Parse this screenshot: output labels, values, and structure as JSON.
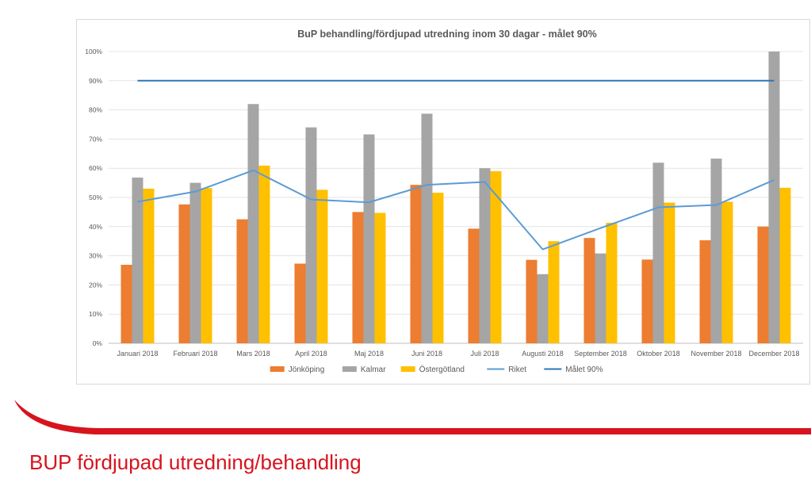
{
  "slide": {
    "title": "BUP fördjupad utredning/behandling",
    "accent_color": "#d7141e"
  },
  "chart_data": {
    "type": "bar",
    "title": "BuP behandling/fördjupad utredning inom 30 dagar - målet 90%",
    "xlabel": "",
    "ylabel": "",
    "ylim": [
      0,
      100
    ],
    "y_ticks": [
      "0%",
      "10%",
      "20%",
      "30%",
      "40%",
      "50%",
      "60%",
      "70%",
      "80%",
      "90%",
      "100%"
    ],
    "grid": true,
    "legend_position": "bottom",
    "categories": [
      "Januari 2018",
      "Februari 2018",
      "Mars 2018",
      "April 2018",
      "Maj 2018",
      "Juni 2018",
      "Juli 2018",
      "Augusti 2018",
      "September 2018",
      "Oktober 2018",
      "November 2018",
      "December 2018"
    ],
    "series": [
      {
        "name": "Jönköping",
        "kind": "bar",
        "color": "#ed7d31",
        "values": [
          26.9,
          47.6,
          42.5,
          27.3,
          45.0,
          54.3,
          39.3,
          28.6,
          36.1,
          28.7,
          35.3,
          40.0
        ]
      },
      {
        "name": "Kalmar",
        "kind": "bar",
        "color": "#a5a5a5",
        "values": [
          56.8,
          55.0,
          82.0,
          74.0,
          71.6,
          78.7,
          60.0,
          23.7,
          30.8,
          61.9,
          63.3,
          100.0
        ]
      },
      {
        "name": "Östergötland",
        "kind": "bar",
        "color": "#ffc000",
        "values": [
          53.0,
          53.2,
          60.9,
          52.6,
          44.7,
          51.6,
          59.0,
          35.0,
          41.3,
          48.2,
          48.5,
          53.3
        ]
      },
      {
        "name": "Riket",
        "kind": "line",
        "color": "#5b9bd5",
        "values": [
          48.5,
          52.0,
          59.3,
          49.3,
          48.3,
          54.3,
          55.3,
          32.2,
          39.5,
          46.6,
          47.4,
          56.0
        ]
      },
      {
        "name": "Målet  90%",
        "kind": "line",
        "color": "#2e75b6",
        "values": [
          90,
          90,
          90,
          90,
          90,
          90,
          90,
          90,
          90,
          90,
          90,
          90
        ]
      }
    ]
  }
}
